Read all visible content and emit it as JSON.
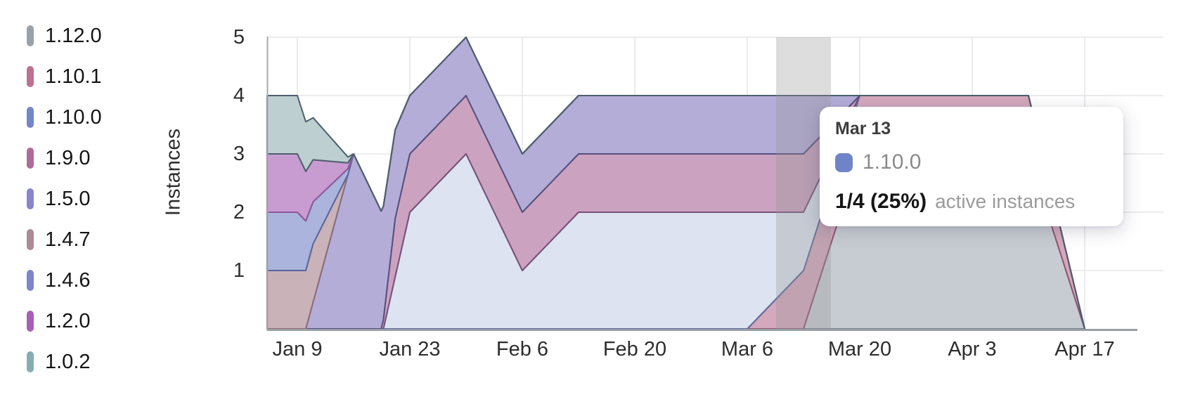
{
  "page": {
    "background": "#ffffff"
  },
  "legend": {
    "items": [
      {
        "label": "1.12.0",
        "color": "#98a2ab"
      },
      {
        "label": "1.10.1",
        "color": "#bd7090"
      },
      {
        "label": "1.10.0",
        "color": "#7286c8"
      },
      {
        "label": "1.9.0",
        "color": "#ad6b9e"
      },
      {
        "label": "1.5.0",
        "color": "#8b85cd"
      },
      {
        "label": "1.4.7",
        "color": "#ac8a96"
      },
      {
        "label": "1.4.6",
        "color": "#7c86c8"
      },
      {
        "label": "1.2.0",
        "color": "#a860b6"
      },
      {
        "label": "1.0.2",
        "color": "#86aeb1"
      }
    ]
  },
  "tooltip": {
    "date": "Mar 13",
    "series": "1.10.0",
    "swatch_color": "#6f84c7",
    "value": "1/4 (25%)",
    "caption": "active instances"
  },
  "chart_data": {
    "type": "area",
    "stacked": true,
    "title": "",
    "y_axis": {
      "label": "Instances",
      "ticks": [
        "1",
        "2",
        "3",
        "4",
        "5"
      ],
      "tick_values": [
        1,
        2,
        3,
        4,
        5
      ],
      "range": [
        0,
        5
      ],
      "grid": true
    },
    "x_axis": {
      "ticks": [
        "Jan 9",
        "Jan 23",
        "Feb 6",
        "Feb 20",
        "Mar 6",
        "Mar 20",
        "Apr 3",
        "Apr 17"
      ],
      "tick_weeks": [
        1,
        3,
        5,
        7,
        9,
        11,
        13,
        15
      ],
      "week_dates": [
        "Jan 2",
        "Jan 9",
        "Jan 16",
        "Jan 23",
        "Jan 30",
        "Feb 6",
        "Feb 13",
        "Feb 20",
        "Feb 27",
        "Mar 6",
        "Mar 13",
        "Mar 20",
        "Mar 27",
        "Apr 3",
        "Apr 10",
        "Apr 17"
      ],
      "grid": true
    },
    "legend_position": "left",
    "clip_start_week": 0.4625,
    "highlight": {
      "date": "Mar 13",
      "week": 10,
      "color": "rgba(150,150,150,0.32)"
    },
    "stack_order_note": "series listed bottom to top; points are [week_index, instances]",
    "series": [
      {
        "name": "1.12.0",
        "fill": "#c7ccd2",
        "stroke": "#767f8c",
        "points": [
          [
            0,
            0
          ],
          [
            10,
            0
          ],
          [
            11,
            3
          ],
          [
            14,
            3
          ],
          [
            15,
            0
          ]
        ]
      },
      {
        "name": "1.10.1",
        "fill": "#d4a8bd",
        "stroke": "#8f5674",
        "points": [
          [
            0,
            0
          ],
          [
            9,
            0
          ],
          [
            10,
            1
          ],
          [
            14,
            1
          ],
          [
            15,
            0
          ]
        ]
      },
      {
        "name": "1.10.0",
        "fill": "#dee3f1",
        "stroke": "#5d6c9e",
        "points": [
          [
            0,
            0
          ],
          [
            2.53,
            0
          ],
          [
            3,
            2
          ],
          [
            4,
            3
          ],
          [
            5,
            1
          ],
          [
            6,
            2
          ],
          [
            9,
            2
          ],
          [
            10,
            1
          ],
          [
            11,
            0
          ],
          [
            15,
            0
          ]
        ]
      },
      {
        "name": "1.9.0",
        "fill": "#cba3c0",
        "stroke": "#784f75",
        "points": [
          [
            0,
            0
          ],
          [
            2.49,
            0
          ],
          [
            2.74,
            1
          ],
          [
            10,
            1
          ],
          [
            11,
            0
          ],
          [
            15,
            0
          ]
        ]
      },
      {
        "name": "1.5.0",
        "fill": "#b4add8",
        "stroke": "#554f7e",
        "points": [
          [
            0,
            0
          ],
          [
            1.15,
            0
          ],
          [
            2,
            3
          ],
          [
            3,
            1
          ],
          [
            10,
            1
          ],
          [
            11,
            0
          ],
          [
            15,
            0
          ]
        ]
      },
      {
        "name": "1.4.7",
        "fill": "#c9b2b8",
        "stroke": "#8a6c76",
        "points": [
          [
            0,
            1
          ],
          [
            1.28,
            1
          ],
          [
            1.9,
            0
          ],
          [
            15,
            0
          ]
        ]
      },
      {
        "name": "1.4.6",
        "fill": "#aab4dc",
        "stroke": "#5a65a0",
        "points": [
          [
            0,
            1
          ],
          [
            1,
            1
          ],
          [
            2,
            0
          ],
          [
            15,
            0
          ]
        ]
      },
      {
        "name": "1.2.0",
        "fill": "#c89cd1",
        "stroke": "#8d569b",
        "points": [
          [
            0,
            1
          ],
          [
            1,
            1
          ],
          [
            2,
            0
          ],
          [
            15,
            0
          ]
        ]
      },
      {
        "name": "1.0.2",
        "fill": "#bdcfd1",
        "stroke": "#4d5f6b",
        "points": [
          [
            0,
            1
          ],
          [
            1,
            1
          ],
          [
            2,
            0
          ],
          [
            15,
            0
          ]
        ]
      }
    ]
  }
}
